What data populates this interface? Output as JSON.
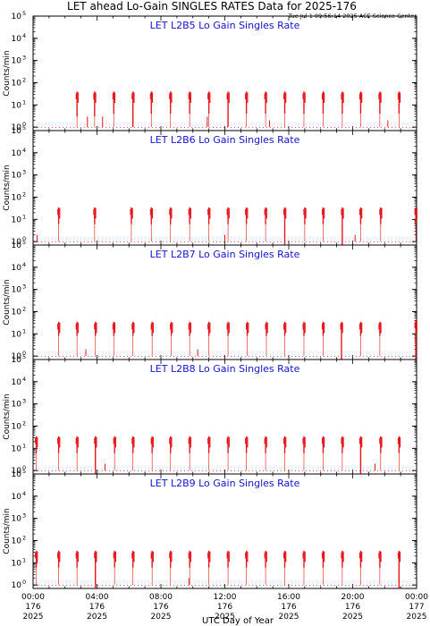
{
  "header": {
    "title": "LET ahead Lo-Gain SINGLES RATES Data for 2025-176",
    "timestamp": "Tue Jul  1 09:56:14 2025 ACE Science Center"
  },
  "colors": {
    "data": "#e8141c",
    "panel_title": "#1414d2",
    "axis": "#000000"
  },
  "chart_data": {
    "type": "scatter",
    "xlabel": "UTC Day of Year",
    "x_range": [
      0,
      24
    ],
    "x_ticks": [
      {
        "hour": 0,
        "time": "00:00",
        "doy": "176",
        "year": "2025"
      },
      {
        "hour": 4,
        "time": "04:00",
        "doy": "176",
        "year": "2025"
      },
      {
        "hour": 8,
        "time": "08:00",
        "doy": "176",
        "year": "2025"
      },
      {
        "hour": 12,
        "time": "12:00",
        "doy": "176",
        "year": "2025"
      },
      {
        "hour": 16,
        "time": "16:00",
        "doy": "176",
        "year": "2025"
      },
      {
        "hour": 20,
        "time": "20:00",
        "doy": "176",
        "year": "2025"
      },
      {
        "hour": 24,
        "time": "00:00",
        "doy": "177",
        "year": "2025"
      }
    ],
    "y_scale": "log",
    "y_range": [
      0.7,
      100000
    ],
    "y_ticks": [
      {
        "value": 1,
        "base": "10",
        "exp": "0"
      },
      {
        "value": 10,
        "base": "10",
        "exp": "1"
      },
      {
        "value": 100,
        "base": "10",
        "exp": "2"
      },
      {
        "value": 1000,
        "base": "10",
        "exp": "3"
      },
      {
        "value": 10000,
        "base": "10",
        "exp": "4"
      },
      {
        "value": 100000,
        "base": "10",
        "exp": "5"
      }
    ],
    "ylabel": "Counts/min",
    "panels": [
      {
        "name": "LET L2B5 Lo Gain Singles Rate",
        "bursts": [
          {
            "t": 2.75,
            "top": 40,
            "bottom": 3
          },
          {
            "t": 3.85,
            "top": 40,
            "bottom": 3
          },
          {
            "t": 5.05,
            "top": 40,
            "bottom": 4
          },
          {
            "t": 6.25,
            "top": 40,
            "bottom": 1
          },
          {
            "t": 7.4,
            "top": 40,
            "bottom": 4
          },
          {
            "t": 8.6,
            "top": 40,
            "bottom": 4
          },
          {
            "t": 9.8,
            "top": 40,
            "bottom": 4
          },
          {
            "t": 11.0,
            "top": 40,
            "bottom": 4
          },
          {
            "t": 12.2,
            "top": 40,
            "bottom": 1
          },
          {
            "t": 13.35,
            "top": 40,
            "bottom": 4
          },
          {
            "t": 14.55,
            "top": 40,
            "bottom": 4
          },
          {
            "t": 15.75,
            "top": 40,
            "bottom": 4
          },
          {
            "t": 16.95,
            "top": 40,
            "bottom": 4
          },
          {
            "t": 18.15,
            "top": 40,
            "bottom": 4
          },
          {
            "t": 19.35,
            "top": 40,
            "bottom": 4
          },
          {
            "t": 20.5,
            "top": 40,
            "bottom": 4
          },
          {
            "t": 21.7,
            "top": 40,
            "bottom": 4
          },
          {
            "t": 22.9,
            "top": 40,
            "bottom": 4
          }
        ],
        "spikes": [
          {
            "t": 3.4,
            "value": 3
          },
          {
            "t": 4.35,
            "value": 3
          },
          {
            "t": 10.9,
            "value": 3
          },
          {
            "t": 14.8,
            "value": 2
          },
          {
            "t": 22.2,
            "value": 2
          }
        ]
      },
      {
        "name": "LET L2B6 Lo Gain Singles Rate",
        "bursts": [
          {
            "t": 1.6,
            "top": 35,
            "bottom": 6
          },
          {
            "t": 3.85,
            "top": 35,
            "bottom": 6
          },
          {
            "t": 6.15,
            "top": 35,
            "bottom": 6
          },
          {
            "t": 7.4,
            "top": 35,
            "bottom": 6
          },
          {
            "t": 8.6,
            "top": 35,
            "bottom": 6
          },
          {
            "t": 9.8,
            "top": 35,
            "bottom": 6
          },
          {
            "t": 11.0,
            "top": 35,
            "bottom": 6
          },
          {
            "t": 12.2,
            "top": 35,
            "bottom": 6
          },
          {
            "t": 13.35,
            "top": 35,
            "bottom": 6
          },
          {
            "t": 14.55,
            "top": 35,
            "bottom": 6
          },
          {
            "t": 15.75,
            "top": 35,
            "bottom": 0.7
          },
          {
            "t": 17.0,
            "top": 35,
            "bottom": 6
          },
          {
            "t": 18.15,
            "top": 35,
            "bottom": 6
          },
          {
            "t": 19.35,
            "top": 35,
            "bottom": 0.7
          },
          {
            "t": 20.5,
            "top": 35,
            "bottom": 6
          },
          {
            "t": 21.75,
            "top": 35,
            "bottom": 6
          },
          {
            "t": 23.95,
            "top": 35,
            "bottom": 6
          }
        ],
        "spikes": [
          {
            "t": 0.25,
            "value": 2
          },
          {
            "t": 12.0,
            "value": 2
          },
          {
            "t": 20.15,
            "value": 2
          }
        ]
      },
      {
        "name": "LET L2B7 Lo Gain Singles Rate",
        "bursts": [
          {
            "t": 1.6,
            "top": 35,
            "bottom": 8
          },
          {
            "t": 2.75,
            "top": 35,
            "bottom": 8
          },
          {
            "t": 3.9,
            "top": 35,
            "bottom": 8
          },
          {
            "t": 5.05,
            "top": 35,
            "bottom": 8
          },
          {
            "t": 6.25,
            "top": 35,
            "bottom": 8
          },
          {
            "t": 7.45,
            "top": 35,
            "bottom": 8
          },
          {
            "t": 8.65,
            "top": 35,
            "bottom": 8
          },
          {
            "t": 9.8,
            "top": 35,
            "bottom": 8
          },
          {
            "t": 11.0,
            "top": 35,
            "bottom": 8
          },
          {
            "t": 12.2,
            "top": 35,
            "bottom": 8
          },
          {
            "t": 13.4,
            "top": 35,
            "bottom": 8
          },
          {
            "t": 14.6,
            "top": 35,
            "bottom": 8
          },
          {
            "t": 15.75,
            "top": 35,
            "bottom": 8
          },
          {
            "t": 16.95,
            "top": 35,
            "bottom": 8
          },
          {
            "t": 18.15,
            "top": 35,
            "bottom": 8
          },
          {
            "t": 19.3,
            "top": 35,
            "bottom": 0.7
          },
          {
            "t": 20.5,
            "top": 35,
            "bottom": 8
          },
          {
            "t": 21.7,
            "top": 35,
            "bottom": 8
          },
          {
            "t": 23.95,
            "top": 40,
            "bottom": 0.7
          }
        ],
        "spikes": [
          {
            "t": 3.3,
            "value": 2
          },
          {
            "t": 10.3,
            "value": 2
          }
        ]
      },
      {
        "name": "LET L2B8 Lo Gain Singles Rate",
        "bursts": [
          {
            "t": 0.2,
            "top": 35,
            "bottom": 6
          },
          {
            "t": 1.6,
            "top": 35,
            "bottom": 6
          },
          {
            "t": 2.75,
            "top": 35,
            "bottom": 6
          },
          {
            "t": 3.9,
            "top": 35,
            "bottom": 0.7
          },
          {
            "t": 5.1,
            "top": 35,
            "bottom": 6
          },
          {
            "t": 6.25,
            "top": 35,
            "bottom": 6
          },
          {
            "t": 7.45,
            "top": 35,
            "bottom": 6
          },
          {
            "t": 8.6,
            "top": 35,
            "bottom": 6
          },
          {
            "t": 9.8,
            "top": 35,
            "bottom": 6
          },
          {
            "t": 11.0,
            "top": 35,
            "bottom": 6
          },
          {
            "t": 12.2,
            "top": 35,
            "bottom": 6
          },
          {
            "t": 13.35,
            "top": 35,
            "bottom": 6
          },
          {
            "t": 14.55,
            "top": 35,
            "bottom": 6
          },
          {
            "t": 15.75,
            "top": 35,
            "bottom": 6
          },
          {
            "t": 16.95,
            "top": 35,
            "bottom": 6
          },
          {
            "t": 18.15,
            "top": 35,
            "bottom": 6
          },
          {
            "t": 19.35,
            "top": 35,
            "bottom": 6
          },
          {
            "t": 20.5,
            "top": 35,
            "bottom": 0.7
          },
          {
            "t": 21.75,
            "top": 35,
            "bottom": 6
          },
          {
            "t": 22.9,
            "top": 35,
            "bottom": 6
          }
        ],
        "spikes": [
          {
            "t": 4.5,
            "value": 2
          },
          {
            "t": 21.4,
            "value": 2
          }
        ]
      },
      {
        "name": "LET L2B9 Lo Gain Singles Rate",
        "bursts": [
          {
            "t": 0.2,
            "top": 35,
            "bottom": 6
          },
          {
            "t": 1.6,
            "top": 35,
            "bottom": 6
          },
          {
            "t": 2.75,
            "top": 35,
            "bottom": 6
          },
          {
            "t": 3.9,
            "top": 35,
            "bottom": 0.7
          },
          {
            "t": 5.1,
            "top": 35,
            "bottom": 6
          },
          {
            "t": 6.25,
            "top": 35,
            "bottom": 6
          },
          {
            "t": 7.45,
            "top": 35,
            "bottom": 6
          },
          {
            "t": 8.6,
            "top": 35,
            "bottom": 6
          },
          {
            "t": 9.8,
            "top": 35,
            "bottom": 6
          },
          {
            "t": 11.0,
            "top": 35,
            "bottom": 6
          },
          {
            "t": 12.2,
            "top": 35,
            "bottom": 6
          },
          {
            "t": 13.35,
            "top": 35,
            "bottom": 6
          },
          {
            "t": 14.55,
            "top": 35,
            "bottom": 6
          },
          {
            "t": 15.75,
            "top": 35,
            "bottom": 6
          },
          {
            "t": 16.95,
            "top": 35,
            "bottom": 6
          },
          {
            "t": 18.15,
            "top": 35,
            "bottom": 6
          },
          {
            "t": 19.35,
            "top": 35,
            "bottom": 6
          },
          {
            "t": 20.5,
            "top": 35,
            "bottom": 6
          },
          {
            "t": 21.7,
            "top": 35,
            "bottom": 6
          },
          {
            "t": 22.9,
            "top": 35,
            "bottom": 0.7
          }
        ],
        "spikes": [
          {
            "t": 9.75,
            "value": 2
          }
        ]
      }
    ]
  }
}
